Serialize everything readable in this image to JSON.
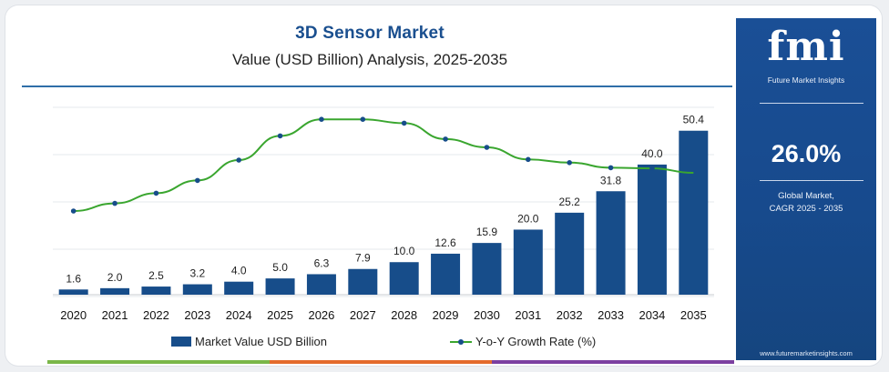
{
  "title": "3D Sensor Market",
  "subtitle": "Value (USD Billion) Analysis, 2025-2035",
  "sidebar": {
    "logo": "fmi",
    "logo_tagline": "Future Market Insights",
    "cagr_value": "26.0%",
    "cagr_label_line1": "Global Market,",
    "cagr_label_line2": "CAGR 2025 - 2035",
    "website": "www.futuremarketinsights.com"
  },
  "colors": {
    "bar": "#174d8a",
    "line": "#3aa62f",
    "title": "#1a4f8f",
    "sidebar": "#1a4f96",
    "strip": [
      "#7ab648",
      "#e46b2c",
      "#7b3fa0"
    ]
  },
  "chart_data": {
    "type": "bar+line",
    "categories": [
      "2020",
      "2021",
      "2022",
      "2023",
      "2024",
      "2025",
      "2026",
      "2027",
      "2028",
      "2029",
      "2030",
      "2031",
      "2032",
      "2033",
      "2034",
      "2035"
    ],
    "series": [
      {
        "name": "Market Value USD Billion",
        "type": "bar",
        "values": [
          1.6,
          2.0,
          2.5,
          3.2,
          4.0,
          5.0,
          6.3,
          7.9,
          10.0,
          12.6,
          15.9,
          20.0,
          25.2,
          31.8,
          40.0,
          50.4
        ],
        "labels": [
          "1.6",
          "2.0",
          "2.5",
          "3.2",
          "4.0",
          "5.0",
          "6.3",
          "7.9",
          "10.0",
          "12.6",
          "15.9",
          "20.0",
          "25.2",
          "31.8",
          "40.0",
          "50.4"
        ]
      },
      {
        "name": "Y-o-Y Growth Rate (%)",
        "type": "line",
        "values": [
          20.0,
          21.2,
          22.8,
          24.8,
          28.0,
          31.8,
          34.4,
          34.4,
          33.8,
          31.3,
          30.0,
          28.1,
          27.6,
          26.8,
          26.7,
          26.0
        ]
      }
    ],
    "ylim_bar": [
      0,
      52
    ],
    "ylim_line": [
      12,
      36
    ],
    "legend_position": "bottom",
    "grid": true
  }
}
